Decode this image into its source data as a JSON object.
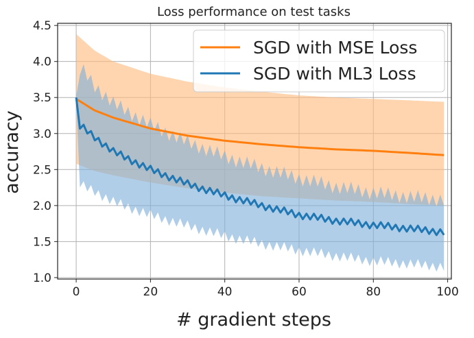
{
  "chart_data": {
    "type": "line",
    "title": "Loss performance on test tasks",
    "xlabel": "# gradient steps",
    "ylabel": "accuracy",
    "xlim": [
      -5,
      101
    ],
    "ylim": [
      0.98,
      4.53
    ],
    "xticks": [
      0,
      20,
      40,
      60,
      80,
      100
    ],
    "yticks": [
      1.0,
      1.5,
      2.0,
      2.5,
      3.0,
      3.5,
      4.0,
      4.5
    ],
    "ytick_labels": [
      "1.0",
      "1.5",
      "2.0",
      "2.5",
      "3.0",
      "3.5",
      "4.0",
      "4.5"
    ],
    "grid": true,
    "legend_position": "top-right",
    "series": [
      {
        "name": "SGD with MSE Loss",
        "color": "#ff7f0e",
        "band_color": "#ffbb7f",
        "x": [
          0,
          5,
          10,
          20,
          30,
          40,
          50,
          60,
          70,
          80,
          90,
          99
        ],
        "mean": [
          3.48,
          3.32,
          3.22,
          3.07,
          2.97,
          2.9,
          2.85,
          2.81,
          2.78,
          2.76,
          2.73,
          2.7
        ],
        "upper": [
          4.38,
          4.15,
          4.0,
          3.83,
          3.72,
          3.64,
          3.58,
          3.53,
          3.5,
          3.48,
          3.46,
          3.44
        ],
        "lower": [
          2.58,
          2.48,
          2.42,
          2.32,
          2.24,
          2.18,
          2.13,
          2.1,
          2.07,
          2.05,
          2.02,
          2.0
        ]
      },
      {
        "name": "SGD with ML3 Loss",
        "color": "#1f77b4",
        "band_color": "#7fb0d9",
        "x": [
          0,
          1,
          2,
          5,
          10,
          20,
          30,
          40,
          50,
          60,
          70,
          80,
          90,
          99
        ],
        "mean": [
          3.5,
          3.1,
          3.07,
          2.95,
          2.75,
          2.5,
          2.3,
          2.14,
          2.0,
          1.87,
          1.79,
          1.73,
          1.68,
          1.63
        ],
        "upper": [
          3.52,
          3.88,
          3.86,
          3.66,
          3.42,
          3.12,
          2.88,
          2.68,
          2.52,
          2.38,
          2.26,
          2.18,
          2.12,
          2.08
        ],
        "lower": [
          3.48,
          2.3,
          2.26,
          2.2,
          2.05,
          1.87,
          1.72,
          1.58,
          1.47,
          1.38,
          1.3,
          1.23,
          1.19,
          1.15
        ]
      }
    ]
  }
}
